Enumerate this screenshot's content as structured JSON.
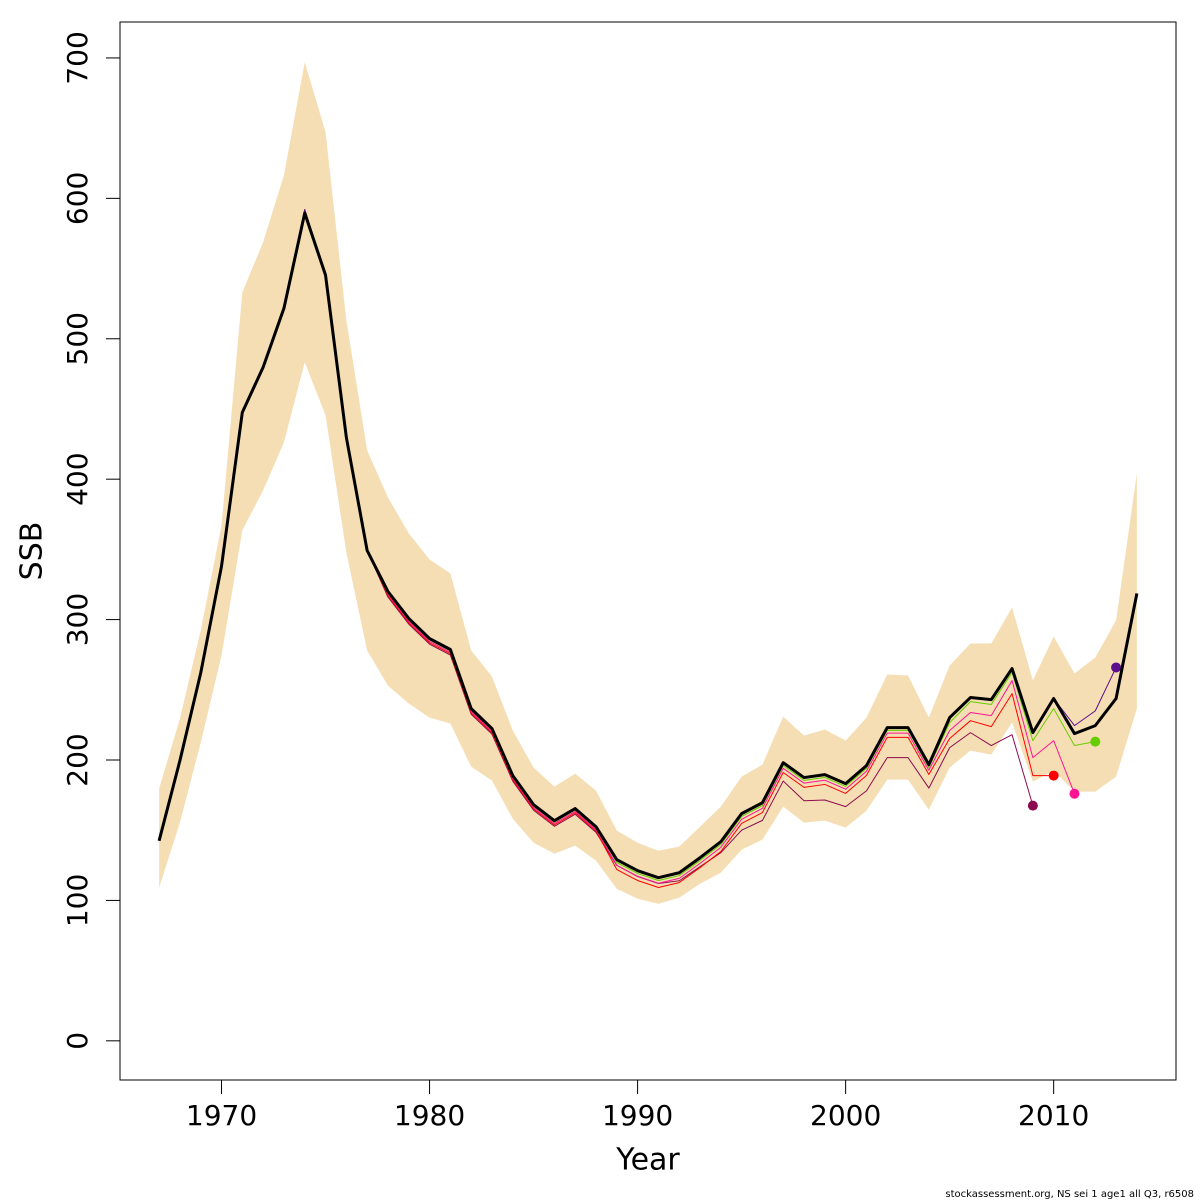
{
  "chart_data": {
    "type": "line",
    "xlabel": "Year",
    "ylabel": "SSB",
    "footer": "stockassessment.org, NS sei 1 age1 all Q3, r6508",
    "xlim": [
      1965.12,
      2015.88
    ],
    "ylim": [
      -27.9,
      725.6
    ],
    "xticks": [
      1970,
      1980,
      1990,
      2000,
      2010
    ],
    "yticks": [
      0,
      100,
      200,
      300,
      400,
      500,
      600,
      700
    ],
    "x": [
      1967,
      1968,
      1969,
      1970,
      1971,
      1972,
      1973,
      1974,
      1975,
      1976,
      1977,
      1978,
      1979,
      1980,
      1981,
      1982,
      1983,
      1984,
      1985,
      1986,
      1987,
      1988,
      1989,
      1990,
      1991,
      1992,
      1993,
      1994,
      1995,
      1996,
      1997,
      1998,
      1999,
      2000,
      2001,
      2002,
      2003,
      2004,
      2005,
      2006,
      2007,
      2008,
      2009,
      2010,
      2011,
      2012,
      2013,
      2014
    ],
    "band": {
      "color": "#f5deb3",
      "lower": [
        109,
        155.4,
        212.4,
        274.4,
        363.5,
        392,
        426.2,
        483.3,
        445.5,
        347.8,
        278,
        253,
        240.2,
        230.2,
        226,
        195.3,
        185.3,
        158.2,
        141.1,
        133.3,
        139,
        128.3,
        108.3,
        101.2,
        97.6,
        101.9,
        111.9,
        119.7,
        136.1,
        143.3,
        166.8,
        155.4,
        156.8,
        151.8,
        163.9,
        186,
        186,
        164.6,
        194.6,
        206.7,
        203.8,
        226.7,
        184.6,
        192.4,
        177.5,
        177.5,
        188.2,
        236.6
      ],
      "upper": [
        179.6,
        229.5,
        292.2,
        367,
        533,
        568.8,
        616.5,
        697,
        647.2,
        513.2,
        420.5,
        387,
        361.4,
        342.8,
        332.9,
        278,
        259.4,
        221,
        194.6,
        181,
        190.3,
        178.2,
        149.7,
        141.1,
        135.4,
        138.3,
        152.5,
        166.8,
        188.2,
        196.7,
        230.9,
        217.4,
        221.7,
        213.8,
        230.2,
        260.9,
        260.2,
        230.2,
        267.3,
        283,
        283,
        308.6,
        256.6,
        288,
        261.6,
        273,
        299.4,
        404.1
      ]
    },
    "series": [
      {
        "color": "#8b0a50",
        "width": 1,
        "end_point": true,
        "values": [
          142.5,
          199.6,
          262,
          338,
          447.6,
          479.7,
          521.7,
          592,
          545.3,
          429.8,
          349.2,
          316,
          296.8,
          282.5,
          274.7,
          232.6,
          218.4,
          184.9,
          164.2,
          152.8,
          161.4,
          148.5,
          125,
          117,
          112,
          114,
          124,
          134,
          150,
          157,
          185,
          171,
          171.5,
          166.8,
          178,
          201.7,
          201.7,
          180,
          208.8,
          219.5,
          210.3,
          218,
          167.5,
          null,
          null,
          null,
          null,
          null
        ]
      },
      {
        "color": "#ff0000",
        "width": 1,
        "end_point": true,
        "values": [
          142.5,
          199.6,
          262,
          338,
          447.6,
          479.7,
          521.7,
          592,
          545.3,
          429.8,
          349.2,
          317,
          297.8,
          283.5,
          275.7,
          233.6,
          219.4,
          185.9,
          165.2,
          153.8,
          162.4,
          149.5,
          122,
          114.2,
          109.2,
          112.7,
          123.4,
          134.8,
          154.8,
          162.6,
          191.1,
          180.5,
          182.6,
          176.2,
          189,
          216.1,
          216.1,
          189.7,
          215.3,
          228,
          223.8,
          247.3,
          188.9,
          188.9,
          null,
          null,
          null,
          null
        ]
      },
      {
        "color": "#ff1493",
        "width": 1,
        "end_point": true,
        "values": [
          142.5,
          199.6,
          262,
          338,
          447.6,
          479.7,
          521.7,
          592,
          545.3,
          429.8,
          349.2,
          318,
          298.8,
          284.5,
          276.7,
          234.6,
          220.4,
          186.9,
          166.2,
          154.8,
          163.4,
          150.5,
          125,
          117.2,
          112.2,
          115.7,
          126.4,
          137.8,
          157.8,
          165.6,
          194.1,
          183.5,
          185.6,
          179.2,
          192,
          219.1,
          219.1,
          192.7,
          221,
          233.8,
          231.6,
          256.6,
          201.7,
          213.8,
          176,
          null,
          null,
          null
        ]
      },
      {
        "color": "#66cd00",
        "width": 1,
        "end_point": true,
        "values": [
          142.5,
          199.6,
          262,
          338,
          447.6,
          479.7,
          521.7,
          592,
          545.3,
          429.8,
          349.2,
          319,
          299.8,
          285.5,
          277.7,
          235.6,
          221.4,
          187.9,
          167.2,
          155.8,
          164.4,
          151.5,
          127,
          119.2,
          114.2,
          117.7,
          128.4,
          139.8,
          159.8,
          167.6,
          196.1,
          185.5,
          187.6,
          181.2,
          194,
          221.1,
          221.1,
          194.7,
          226.6,
          241.6,
          239.5,
          262.3,
          213.8,
          236.6,
          210.3,
          213.1,
          null,
          null
        ]
      },
      {
        "color": "#5b0f8e",
        "width": 1,
        "end_point": true,
        "values": [
          142.5,
          199.6,
          262,
          338,
          447.6,
          479.7,
          521.7,
          592,
          545.3,
          429.8,
          349.2,
          320,
          300.8,
          286.5,
          278.7,
          236.6,
          222.4,
          188.9,
          168.2,
          156.8,
          165.4,
          152.5,
          129,
          121.2,
          116.2,
          119.7,
          130.4,
          141.8,
          161.8,
          169.6,
          198.1,
          187.5,
          189.6,
          183.2,
          196,
          223.1,
          223.1,
          196.7,
          230.2,
          244.5,
          243,
          265.1,
          219.5,
          243.8,
          224.5,
          235,
          265.9,
          null
        ]
      },
      {
        "color": "#000000",
        "width": 3,
        "end_point": false,
        "values": [
          142.5,
          199.6,
          262,
          338,
          447.6,
          479.7,
          521.7,
          589.5,
          545.3,
          429.8,
          349.2,
          320,
          300.8,
          286.5,
          278.7,
          236.6,
          222.4,
          188.9,
          168.2,
          156.8,
          165.4,
          152.5,
          129,
          121.2,
          116.2,
          119.7,
          130.4,
          141.8,
          161.8,
          169.6,
          198.1,
          187.5,
          189.6,
          183.2,
          196,
          223.1,
          223.1,
          196.7,
          230.2,
          244.5,
          243,
          265.1,
          219.5,
          243.8,
          218.8,
          224.5,
          243.8,
          318.6
        ]
      }
    ]
  }
}
